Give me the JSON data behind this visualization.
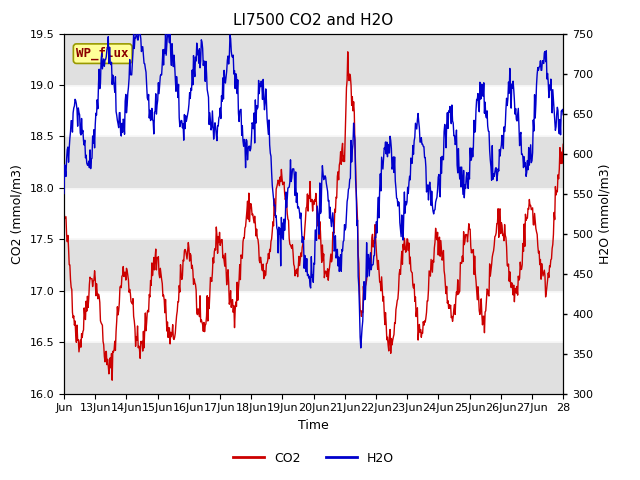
{
  "title": "LI7500 CO2 and H2O",
  "xlabel": "Time",
  "ylabel_left": "CO2 (mmol/m3)",
  "ylabel_right": "H2O (mmol/m3)",
  "co2_color": "#cc0000",
  "h2o_color": "#0000cc",
  "ylim_left": [
    16.0,
    19.5
  ],
  "ylim_right": [
    300,
    750
  ],
  "x_tick_labels": [
    "Jun",
    "13Jun",
    "14Jun",
    "15Jun",
    "16Jun",
    "17Jun",
    "18Jun",
    "19Jun",
    "20Jun",
    "21Jun",
    "22Jun",
    "23Jun",
    "24Jun",
    "25Jun",
    "26Jun",
    "27Jun",
    "28"
  ],
  "annotation_text": "WP_flux",
  "annotation_color": "#8b0000",
  "annotation_bg": "#ffff99",
  "bg_band_color": "#e0e0e0",
  "title_fontsize": 11,
  "axis_label_fontsize": 9,
  "tick_fontsize": 8,
  "legend_fontsize": 9,
  "line_width": 1.0
}
